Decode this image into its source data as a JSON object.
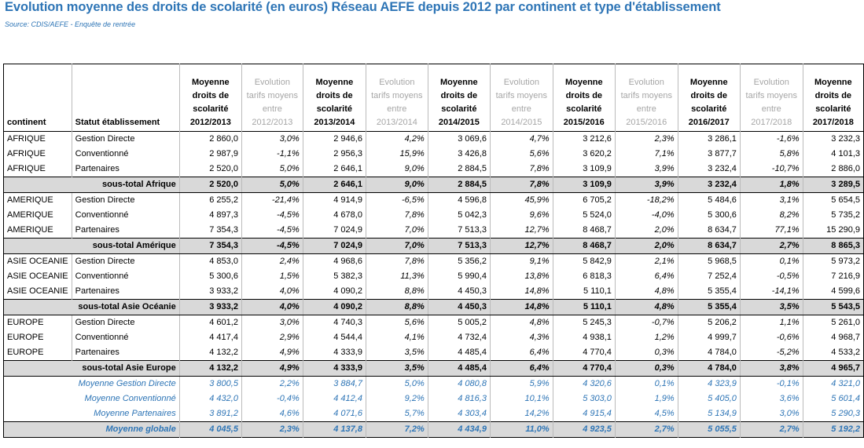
{
  "header": {
    "title": "Evolution moyenne des droits de scolarité (en euros) Réseau AEFE depuis 2012 par continent et type d'établissement",
    "source": "Source: CDIS/AEFE - Enquête de rentrée"
  },
  "table": {
    "columns": [
      [
        "continent"
      ],
      [
        "Statut établissement"
      ],
      [
        "Moyenne",
        "droits de",
        "scolarité",
        "2012/2013"
      ],
      [
        "Evolution",
        "tarifs moyens",
        "entre",
        "2012/2013"
      ],
      [
        "Moyenne",
        "droits de",
        "scolarité",
        "2013/2014"
      ],
      [
        "Evolution",
        "tarifs moyens",
        "entre",
        "2013/2014"
      ],
      [
        "Moyenne",
        "droits de",
        "scolarité",
        "2014/2015"
      ],
      [
        "Evolution",
        "tarifs moyens",
        "entre",
        "2014/2015"
      ],
      [
        "Moyenne",
        "droits de",
        "scolarité",
        "2015/2016"
      ],
      [
        "Evolution",
        "tarifs moyens",
        "entre",
        "2015/2016"
      ],
      [
        "Moyenne",
        "droits de",
        "scolarité",
        "2016/2017"
      ],
      [
        "Evolution",
        "tarifs moyens",
        "entre",
        "2017/2018"
      ],
      [
        "Moyenne",
        "droits de",
        "scolarité",
        "2017/2018"
      ]
    ],
    "groups": [
      {
        "rows": [
          {
            "continent": "AFRIQUE",
            "statut": "Gestion Directe",
            "values": [
              "2 860,0",
              "3,0%",
              "2 946,6",
              "4,2%",
              "3 069,6",
              "4,7%",
              "3 212,6",
              "2,3%",
              "3 286,1",
              "-1,6%",
              "3 232,3"
            ]
          },
          {
            "continent": "AFRIQUE",
            "statut": "Conventionné",
            "values": [
              "2 987,9",
              "-1,1%",
              "2 956,3",
              "15,9%",
              "3 426,8",
              "5,6%",
              "3 620,2",
              "7,1%",
              "3 877,7",
              "5,8%",
              "4 101,3"
            ]
          },
          {
            "continent": "AFRIQUE",
            "statut": "Partenaires",
            "values": [
              "2 520,0",
              "5,0%",
              "2 646,1",
              "9,0%",
              "2 884,5",
              "7,8%",
              "3 109,9",
              "3,9%",
              "3 232,4",
              "-10,7%",
              "2 886,0"
            ]
          }
        ],
        "subtotal": {
          "label": "sous-total Afrique",
          "values": [
            "2 520,0",
            "5,0%",
            "2 646,1",
            "9,0%",
            "2 884,5",
            "7,8%",
            "3 109,9",
            "3,9%",
            "3 232,4",
            "1,8%",
            "3 289,5"
          ]
        }
      },
      {
        "rows": [
          {
            "continent": "AMERIQUE",
            "statut": "Gestion Directe",
            "values": [
              "6 255,2",
              "-21,4%",
              "4 914,9",
              "-6,5%",
              "4 596,8",
              "45,9%",
              "6 705,2",
              "-18,2%",
              "5 484,6",
              "3,1%",
              "5 654,5"
            ]
          },
          {
            "continent": "AMERIQUE",
            "statut": "Conventionné",
            "values": [
              "4 897,3",
              "-4,5%",
              "4 678,0",
              "7,8%",
              "5 042,3",
              "9,6%",
              "5 524,0",
              "-4,0%",
              "5 300,6",
              "8,2%",
              "5 735,2"
            ]
          },
          {
            "continent": "AMERIQUE",
            "statut": "Partenaires",
            "values": [
              "7 354,3",
              "-4,5%",
              "7 024,9",
              "7,0%",
              "7 513,3",
              "12,7%",
              "8 468,7",
              "2,0%",
              "8 634,7",
              "77,1%",
              "15 290,9"
            ]
          }
        ],
        "subtotal": {
          "label": "sous-total Amérique",
          "values": [
            "7 354,3",
            "-4,5%",
            "7 024,9",
            "7,0%",
            "7 513,3",
            "12,7%",
            "8 468,7",
            "2,0%",
            "8 634,7",
            "2,7%",
            "8 865,3"
          ]
        }
      },
      {
        "rows": [
          {
            "continent": "ASIE OCEANIE",
            "statut": "Gestion Directe",
            "values": [
              "4 853,0",
              "2,4%",
              "4 968,6",
              "7,8%",
              "5 356,2",
              "9,1%",
              "5 842,9",
              "2,1%",
              "5 968,5",
              "0,1%",
              "5 973,2"
            ]
          },
          {
            "continent": "ASIE OCEANIE",
            "statut": "Conventionné",
            "values": [
              "5 300,6",
              "1,5%",
              "5 382,3",
              "11,3%",
              "5 990,4",
              "13,8%",
              "6 818,3",
              "6,4%",
              "7 252,4",
              "-0,5%",
              "7 216,9"
            ]
          },
          {
            "continent": "ASIE OCEANIE",
            "statut": "Partenaires",
            "values": [
              "3 933,2",
              "4,0%",
              "4 090,2",
              "8,8%",
              "4 450,3",
              "14,8%",
              "5 110,1",
              "4,8%",
              "5 355,4",
              "-14,1%",
              "4 599,6"
            ]
          }
        ],
        "subtotal": {
          "label": "sous-total Asie Océanie",
          "values": [
            "3 933,2",
            "4,0%",
            "4 090,2",
            "8,8%",
            "4 450,3",
            "14,8%",
            "5 110,1",
            "4,8%",
            "5 355,4",
            "3,5%",
            "5 543,5"
          ]
        }
      },
      {
        "rows": [
          {
            "continent": "EUROPE",
            "statut": "Gestion Directe",
            "values": [
              "4 601,2",
              "3,0%",
              "4 740,3",
              "5,6%",
              "5 005,2",
              "4,8%",
              "5 245,3",
              "-0,7%",
              "5 206,2",
              "1,1%",
              "5 261,0"
            ]
          },
          {
            "continent": "EUROPE",
            "statut": "Conventionné",
            "values": [
              "4 417,4",
              "2,9%",
              "4 544,4",
              "4,1%",
              "4 732,4",
              "4,3%",
              "4 938,1",
              "1,2%",
              "4 999,7",
              "-0,6%",
              "4 968,7"
            ]
          },
          {
            "continent": "EUROPE",
            "statut": "Partenaires",
            "values": [
              "4 132,2",
              "4,9%",
              "4 333,9",
              "3,5%",
              "4 485,4",
              "6,4%",
              "4 770,4",
              "0,3%",
              "4 784,0",
              "-5,2%",
              "4 533,2"
            ]
          }
        ],
        "subtotal": {
          "label": "sous-total Asie Europe",
          "values": [
            "4 132,2",
            "4,9%",
            "4 333,9",
            "3,5%",
            "4 485,4",
            "6,4%",
            "4 770,4",
            "0,3%",
            "4 784,0",
            "3,8%",
            "4 965,7"
          ]
        }
      }
    ],
    "summary": {
      "rows": [
        {
          "label": "Moyenne Gestion Directe",
          "values": [
            "3 800,5",
            "2,2%",
            "3 884,7",
            "5,0%",
            "4 080,8",
            "5,9%",
            "4 320,6",
            "0,1%",
            "4 323,9",
            "-0,1%",
            "4 321,0"
          ]
        },
        {
          "label": "Moyenne Conventionné",
          "values": [
            "4 432,0",
            "-0,4%",
            "4 412,4",
            "9,2%",
            "4 816,3",
            "10,1%",
            "5 303,0",
            "1,9%",
            "5 405,0",
            "3,6%",
            "5 601,4"
          ]
        },
        {
          "label": "Moyenne Partenaires",
          "values": [
            "3 891,2",
            "4,6%",
            "4 071,6",
            "5,7%",
            "4 303,4",
            "14,2%",
            "4 915,4",
            "4,5%",
            "5 134,9",
            "3,0%",
            "5 290,3"
          ]
        }
      ],
      "total": {
        "label": "Moyenne globale",
        "values": [
          "4 045,5",
          "2,3%",
          "4 137,8",
          "7,2%",
          "4 434,9",
          "11,0%",
          "4 923,5",
          "2,7%",
          "5 055,5",
          "2,7%",
          "5 192,2"
        ]
      }
    }
  }
}
